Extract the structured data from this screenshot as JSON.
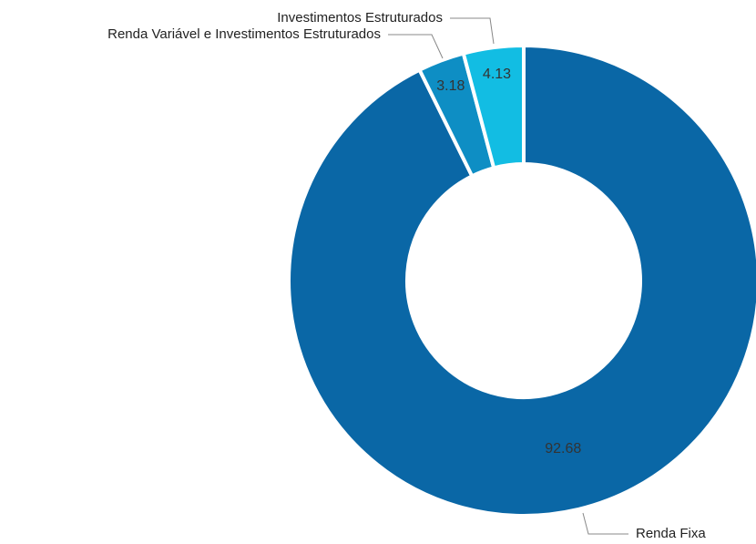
{
  "chart_data": {
    "type": "pie",
    "title": "",
    "categories": [
      "Renda Fixa",
      "Renda Variável e Investimentos Estruturados",
      "Investimentos Estruturados"
    ],
    "values": [
      92.68,
      3.18,
      4.13
    ],
    "value_labels": [
      "92.68",
      "3.18",
      "4.13"
    ],
    "colors": [
      "#0a67a6",
      "#0e8ec4",
      "#12bde3"
    ],
    "donut": true,
    "legend": "none"
  }
}
